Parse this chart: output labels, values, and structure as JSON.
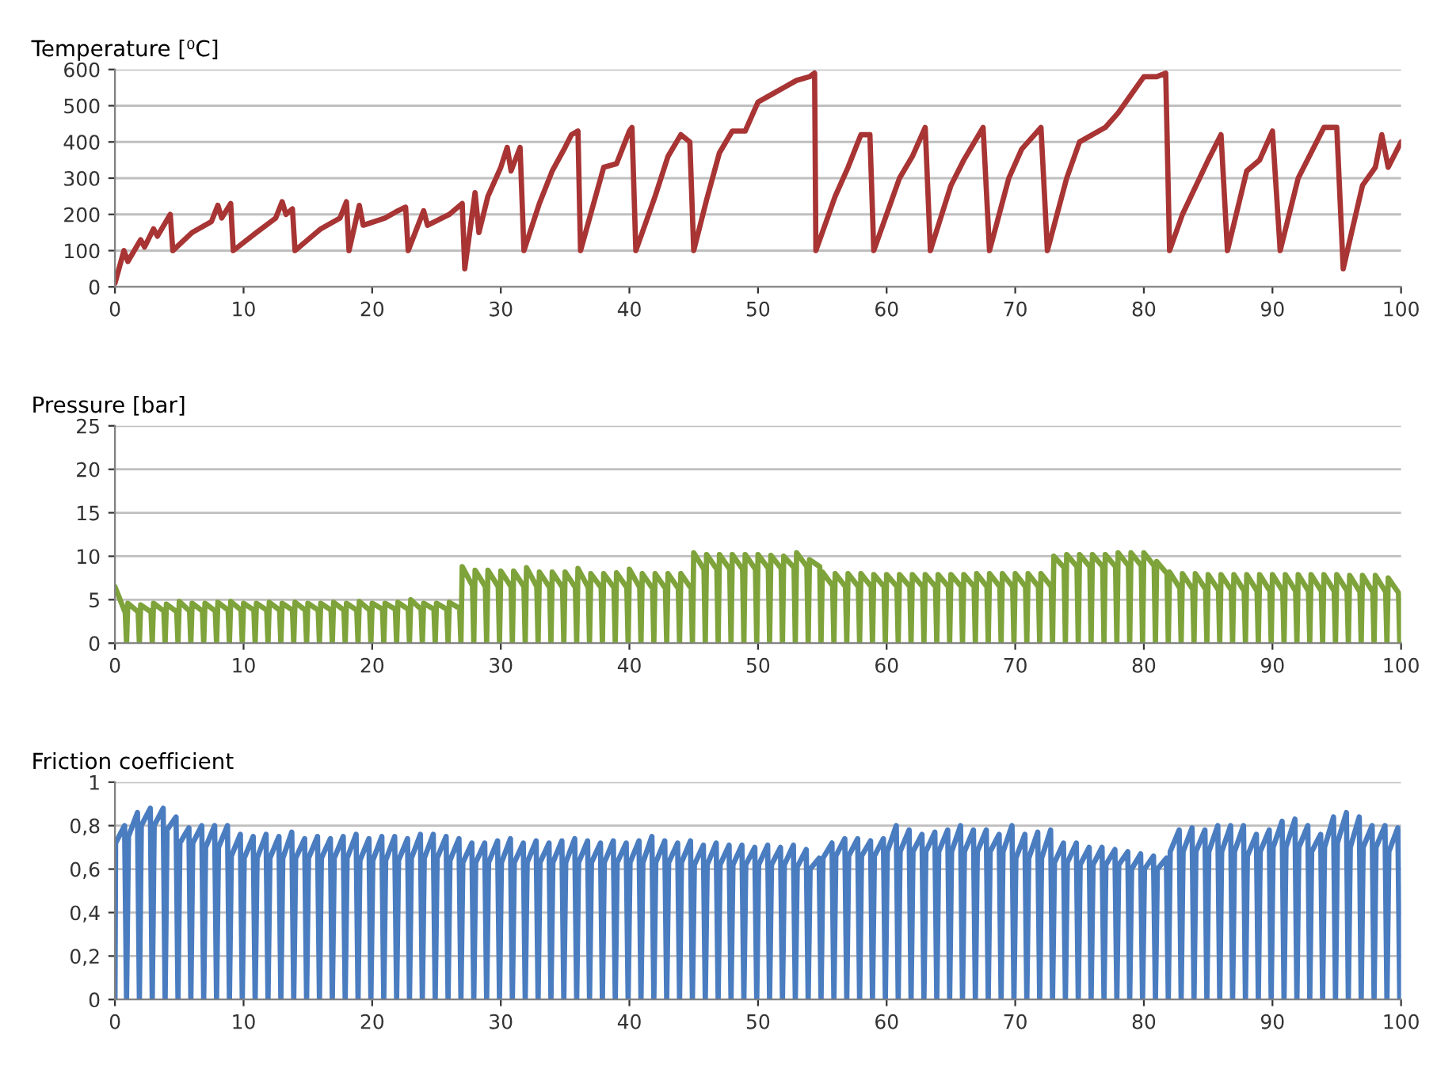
{
  "chart_data": [
    {
      "type": "line",
      "title": "Temperature [⁰C]",
      "xlim": [
        0,
        100
      ],
      "xticks": [
        0,
        10,
        20,
        30,
        40,
        50,
        60,
        70,
        80,
        90,
        100
      ],
      "ylim": [
        0,
        600
      ],
      "yticks": [
        0,
        100,
        200,
        300,
        400,
        500,
        600
      ],
      "grid": "y",
      "series": [
        {
          "color": "#a83434",
          "x": [
            0,
            0.7,
            1,
            2,
            2.3,
            3,
            3.3,
            4.3,
            4.5,
            6,
            7.5,
            8,
            8.3,
            9,
            9.2,
            11,
            12.5,
            13,
            13.3,
            13.8,
            14,
            16,
            17.5,
            18,
            18.2,
            19,
            19.3,
            21,
            22,
            22.6,
            22.8,
            24,
            24.3,
            26,
            27,
            27.2,
            28,
            28.3,
            29,
            30,
            30.5,
            30.8,
            31.5,
            31.8,
            33,
            34,
            35,
            35.5,
            36,
            36.2,
            38,
            39,
            40,
            40.2,
            40.5,
            42,
            43,
            44,
            44.7,
            45,
            46,
            47,
            48,
            49,
            50,
            51,
            52,
            53,
            54,
            54.4,
            54.5,
            56,
            57,
            58,
            58.7,
            59,
            61,
            62,
            63,
            63.4,
            65,
            66,
            67.5,
            68,
            69.5,
            70.5,
            72,
            72.5,
            74,
            75,
            77,
            78,
            79,
            80,
            81,
            81.7,
            82,
            83,
            85,
            86,
            86.5,
            88,
            89,
            90,
            90.6,
            92,
            94,
            95,
            95.5,
            97,
            98,
            98.5,
            99,
            100
          ],
          "values": [
            10,
            100,
            70,
            130,
            110,
            160,
            140,
            200,
            100,
            150,
            180,
            225,
            190,
            230,
            100,
            150,
            190,
            235,
            200,
            215,
            100,
            160,
            190,
            235,
            100,
            225,
            170,
            190,
            210,
            220,
            100,
            210,
            170,
            200,
            230,
            50,
            260,
            150,
            250,
            330,
            385,
            320,
            385,
            100,
            230,
            320,
            385,
            420,
            430,
            100,
            330,
            340,
            430,
            440,
            100,
            250,
            360,
            420,
            400,
            100,
            240,
            370,
            430,
            430,
            510,
            530,
            550,
            570,
            580,
            590,
            100,
            250,
            330,
            420,
            420,
            100,
            300,
            360,
            440,
            100,
            280,
            350,
            440,
            100,
            300,
            380,
            440,
            100,
            300,
            400,
            440,
            480,
            530,
            580,
            580,
            590,
            100,
            200,
            350,
            420,
            100,
            320,
            350,
            430,
            100,
            300,
            440,
            440,
            50,
            280,
            330,
            420,
            330,
            400
          ]
        }
      ]
    },
    {
      "type": "line",
      "title": "Pressure [bar]",
      "xlim": [
        0,
        100
      ],
      "xticks": [
        0,
        10,
        20,
        30,
        40,
        50,
        60,
        70,
        80,
        90,
        100
      ],
      "ylim": [
        0,
        25
      ],
      "yticks": [
        0,
        5,
        10,
        15,
        20,
        25
      ],
      "grid": "y",
      "series": [
        {
          "color": "#7ea33b",
          "x": [
            0,
            0.8,
            0.9,
            1,
            1.8,
            1.9,
            2,
            2.8,
            2.9,
            3,
            3.8,
            3.9,
            4,
            4.8,
            4.9,
            5,
            5.8,
            5.9,
            6,
            6.8,
            6.9,
            7,
            7.8,
            7.9,
            8,
            8.8,
            8.9,
            9,
            9.8,
            9.9,
            10,
            10.8,
            10.9,
            11,
            11.8,
            11.9,
            12,
            12.8,
            12.9,
            13,
            13.8,
            13.9,
            14,
            14.8,
            14.9,
            15,
            15.8,
            15.9,
            16,
            16.8,
            16.9,
            17,
            17.8,
            17.9,
            18,
            18.8,
            18.9,
            19,
            19.8,
            19.9,
            20,
            20.8,
            20.9,
            21,
            21.8,
            21.9,
            22,
            22.8,
            22.9,
            23,
            23.8,
            23.9,
            24,
            24.8,
            24.9,
            25,
            25.8,
            25.9,
            26,
            26.8,
            26.9,
            27,
            27.8,
            27.9,
            28,
            28.8,
            28.9,
            29,
            29.8,
            29.9,
            30,
            30.8,
            30.9,
            31,
            31.8,
            31.9,
            32,
            32.8,
            32.9,
            33,
            33.8,
            33.9,
            34,
            34.8,
            34.9,
            35,
            35.8,
            35.9,
            36,
            36.8,
            36.9,
            37,
            37.8,
            37.9,
            38,
            38.8,
            38.9,
            39,
            39.8,
            39.9,
            40,
            40.8,
            40.9,
            41,
            41.8,
            41.9,
            42,
            42.8,
            42.9,
            43,
            43.8,
            43.9,
            44,
            44.8,
            44.9,
            45,
            45.8,
            45.9,
            46,
            46.8,
            46.9,
            47,
            47.8,
            47.9,
            48,
            48.8,
            48.9,
            49,
            49.8,
            49.9,
            50,
            50.8,
            50.9,
            51,
            51.8,
            51.9,
            52,
            52.8,
            52.9,
            53,
            53.8,
            53.9,
            54,
            54.8,
            54.9,
            55,
            55.8,
            55.9,
            56,
            56.8,
            56.9,
            57,
            57.8,
            57.9,
            58,
            58.8,
            58.9,
            59,
            59.8,
            59.9,
            60,
            60.8,
            60.9,
            61,
            61.8,
            61.9,
            62,
            62.8,
            62.9,
            63,
            63.8,
            63.9,
            64,
            64.8,
            64.9,
            65,
            65.8,
            65.9,
            66,
            66.8,
            66.9,
            67,
            67.8,
            67.9,
            68,
            68.8,
            68.9,
            69,
            69.8,
            69.9,
            70,
            70.8,
            70.9,
            71,
            71.8,
            71.9,
            72,
            72.8,
            72.9,
            73,
            73.8,
            73.9,
            74,
            74.8,
            74.9,
            75,
            75.8,
            75.9,
            76,
            76.8,
            76.9,
            77,
            77.8,
            77.9,
            78,
            78.8,
            78.9,
            79,
            79.8,
            79.9,
            80,
            80.8,
            80.9,
            81,
            81.8,
            81.9,
            82,
            82.8,
            82.9,
            83,
            83.8,
            83.9,
            84,
            84.8,
            84.9,
            85,
            85.8,
            85.9,
            86,
            86.8,
            86.9,
            87,
            87.8,
            87.9,
            88,
            88.8,
            88.9,
            89,
            89.8,
            89.9,
            90,
            90.8,
            90.9,
            91,
            91.8,
            91.9,
            92,
            92.8,
            92.9,
            93,
            93.8,
            93.9,
            94,
            94.8,
            94.9,
            95,
            95.8,
            95.9,
            96,
            96.8,
            96.9,
            97,
            97.8,
            97.9,
            98,
            98.8,
            98.9,
            99,
            99.8,
            99.9
          ],
          "values": [
            6.5,
            3.5,
            0,
            4.6,
            3.6,
            0,
            4.4,
            3.6,
            0,
            4.6,
            3.7,
            0,
            4.5,
            3.6,
            0,
            4.8,
            3.7,
            0,
            4.6,
            3.7,
            0,
            4.6,
            3.7,
            0,
            4.7,
            3.8,
            0,
            4.8,
            3.8,
            0,
            4.6,
            3.8,
            0,
            4.6,
            3.8,
            0,
            4.7,
            3.8,
            0,
            4.6,
            3.8,
            0,
            4.7,
            3.8,
            0,
            4.6,
            3.8,
            0,
            4.6,
            3.8,
            0,
            4.7,
            3.8,
            0,
            4.6,
            3.8,
            0,
            4.8,
            3.8,
            0,
            4.6,
            3.9,
            0,
            4.6,
            3.9,
            0,
            4.7,
            3.9,
            0,
            5.0,
            3.9,
            0,
            4.6,
            3.9,
            0,
            4.6,
            3.9,
            0,
            4.7,
            4.0,
            0,
            8.8,
            6.6,
            0,
            8.4,
            6.5,
            0,
            8.4,
            6.5,
            0,
            8.3,
            6.5,
            0,
            8.3,
            6.5,
            0,
            8.7,
            6.5,
            0,
            8.2,
            6.4,
            0,
            8.2,
            6.4,
            0,
            8.2,
            6.4,
            0,
            8.6,
            6.4,
            0,
            8.0,
            6.4,
            0,
            8.0,
            6.4,
            0,
            8.1,
            6.4,
            0,
            8.5,
            6.4,
            0,
            8.0,
            6.3,
            0,
            8.0,
            6.3,
            0,
            8.0,
            6.3,
            0,
            8.0,
            6.3,
            0,
            10.4,
            8.5,
            0,
            10.2,
            8.5,
            0,
            10.2,
            8.5,
            0,
            10.2,
            8.5,
            0,
            10.2,
            8.5,
            0,
            10.2,
            8.6,
            0,
            10.1,
            8.6,
            0,
            10.0,
            8.7,
            0,
            10.4,
            8.8,
            0,
            9.6,
            8.8,
            0,
            8.2,
            6.6,
            0,
            8.0,
            6.5,
            0,
            8.0,
            6.5,
            0,
            8.0,
            6.5,
            0,
            7.9,
            6.5,
            0,
            7.9,
            6.5,
            0,
            7.9,
            6.5,
            0,
            7.9,
            6.5,
            0,
            7.9,
            6.5,
            0,
            7.9,
            6.5,
            0,
            7.9,
            6.5,
            0,
            7.9,
            6.5,
            0,
            8.0,
            6.5,
            0,
            8.0,
            6.5,
            0,
            8.0,
            6.5,
            0,
            8.0,
            6.5,
            0,
            8.0,
            6.5,
            0,
            8.0,
            6.5,
            0,
            10.0,
            8.7,
            0,
            10.2,
            8.8,
            0,
            10.2,
            8.8,
            0,
            10.2,
            8.8,
            0,
            10.2,
            8.8,
            0,
            10.4,
            8.9,
            0,
            10.4,
            8.9,
            0,
            10.4,
            8.9,
            0,
            9.4,
            8.0,
            0,
            8.2,
            6.3,
            0,
            8.0,
            6.2,
            0,
            8.0,
            6.2,
            0,
            7.9,
            6.1,
            0,
            7.9,
            6.1,
            0,
            7.9,
            6.0,
            0,
            7.9,
            6.0,
            0,
            7.9,
            6.0,
            0,
            7.9,
            6.0,
            0,
            7.9,
            6.0,
            0,
            7.9,
            6.0,
            0,
            7.9,
            6.0,
            0,
            7.9,
            6.0,
            0,
            7.9,
            6.0,
            0,
            7.8,
            5.9,
            0,
            7.8,
            5.9,
            0,
            7.8,
            5.9,
            0,
            7.5,
            5.8,
            0
          ]
        }
      ]
    },
    {
      "type": "line",
      "title": "Friction coefficient",
      "xlim": [
        0,
        100
      ],
      "xticks": [
        0,
        10,
        20,
        30,
        40,
        50,
        60,
        70,
        80,
        90,
        100
      ],
      "ylim": [
        0,
        1
      ],
      "yticks": [
        0,
        {
          "value": 0.2,
          "label": "0,2"
        },
        {
          "value": 0.4,
          "label": "0,4"
        },
        {
          "value": 0.6,
          "label": "0,6"
        },
        {
          "value": 0.8,
          "label": "0,8"
        },
        1
      ],
      "grid": "y",
      "series": [
        {
          "color": "#4a7cc0",
          "x": [
            0,
            0.05,
            0.75,
            0.9,
            1.05,
            1.75,
            1.9,
            2.05,
            2.75,
            2.9,
            3.05,
            3.75,
            3.9,
            4.05,
            4.75,
            4.9,
            5.05,
            5.75,
            5.9,
            6.05,
            6.75,
            6.9,
            7.05,
            7.75,
            7.9,
            8.05,
            8.75,
            8.9,
            9.05,
            9.75,
            9.9,
            10.05,
            10.75,
            10.9,
            11.05,
            11.75,
            11.9,
            12.05,
            12.75,
            12.9,
            13.05,
            13.75,
            13.9,
            14.05,
            14.75,
            14.9,
            15.05,
            15.75,
            15.9,
            16.05,
            16.75,
            16.9,
            17.05,
            17.75,
            17.9,
            18.05,
            18.75,
            18.9,
            19.05,
            19.75,
            19.9,
            20.05,
            20.75,
            20.9,
            21.05,
            21.75,
            21.9,
            22.05,
            22.75,
            22.9,
            23.05,
            23.75,
            23.9,
            24.05,
            24.75,
            24.9,
            25.05,
            25.75,
            25.9,
            26.05,
            26.75,
            26.9,
            27.05,
            27.75,
            27.9,
            28.05,
            28.75,
            28.9,
            29.05,
            29.75,
            29.9,
            30.05,
            30.75,
            30.9,
            31.05,
            31.75,
            31.9,
            32.05,
            32.75,
            32.9,
            33.05,
            33.75,
            33.9,
            34.05,
            34.75,
            34.9,
            35.05,
            35.75,
            35.9,
            36.05,
            36.75,
            36.9,
            37.05,
            37.75,
            37.9,
            38.05,
            38.75,
            38.9,
            39.05,
            39.75,
            39.9,
            40.05,
            40.75,
            40.9,
            41.05,
            41.75,
            41.9,
            42.05,
            42.75,
            42.9,
            43.05,
            43.75,
            43.9,
            44.05,
            44.75,
            44.9,
            45.05,
            45.75,
            45.9,
            46.05,
            46.75,
            46.9,
            47.05,
            47.75,
            47.9,
            48.05,
            48.75,
            48.9,
            49.05,
            49.75,
            49.9,
            50.05,
            50.75,
            50.9,
            51.05,
            51.75,
            51.9,
            52.05,
            52.75,
            52.9,
            53.05,
            53.75,
            53.9,
            54.05,
            54.75,
            54.9,
            55.05,
            55.75,
            55.9,
            56.05,
            56.75,
            56.9,
            57.05,
            57.75,
            57.9,
            58.05,
            58.75,
            58.9,
            59.05,
            59.75,
            59.9,
            60.05,
            60.75,
            60.9,
            61.05,
            61.75,
            61.9,
            62.05,
            62.75,
            62.9,
            63.05,
            63.75,
            63.9,
            64.05,
            64.75,
            64.9,
            65.05,
            65.75,
            65.9,
            66.05,
            66.75,
            66.9,
            67.05,
            67.75,
            67.9,
            68.05,
            68.75,
            68.9,
            69.05,
            69.75,
            69.9,
            70.05,
            70.75,
            70.9,
            71.05,
            71.75,
            71.9,
            72.05,
            72.75,
            72.9,
            73.05,
            73.75,
            73.9,
            74.05,
            74.75,
            74.9,
            75.05,
            75.75,
            75.9,
            76.05,
            76.75,
            76.9,
            77.05,
            77.75,
            77.9,
            78.05,
            78.75,
            78.9,
            79.05,
            79.75,
            79.9,
            80.05,
            80.75,
            80.9,
            81.05,
            81.75,
            81.9,
            82.05,
            82.75,
            82.9,
            83.05,
            83.75,
            83.9,
            84.05,
            84.75,
            84.9,
            85.05,
            85.75,
            85.9,
            86.05,
            86.75,
            86.9,
            87.05,
            87.75,
            87.9,
            88.05,
            88.75,
            88.9,
            89.05,
            89.75,
            89.9,
            90.05,
            90.75,
            90.9,
            91.05,
            91.75,
            91.9,
            92.05,
            92.75,
            92.9,
            93.05,
            93.75,
            93.9,
            94.05,
            94.75,
            94.9,
            95.05,
            95.75,
            95.9,
            96.05,
            96.75,
            96.9,
            97.05,
            97.75,
            97.9,
            98.05,
            98.75,
            98.9,
            99.05,
            99.75,
            99.9
          ],
          "values": [
            0,
            0.72,
            0.8,
            0,
            0.75,
            0.86,
            0,
            0.8,
            0.88,
            0,
            0.8,
            0.88,
            0,
            0.78,
            0.84,
            0,
            0.72,
            0.79,
            0,
            0.72,
            0.8,
            0,
            0.7,
            0.8,
            0,
            0.7,
            0.8,
            0,
            0.66,
            0.76,
            0,
            0.65,
            0.75,
            0,
            0.65,
            0.76,
            0,
            0.65,
            0.75,
            0,
            0.65,
            0.77,
            0,
            0.65,
            0.74,
            0,
            0.65,
            0.75,
            0,
            0.65,
            0.74,
            0,
            0.65,
            0.75,
            0,
            0.65,
            0.76,
            0,
            0.64,
            0.74,
            0,
            0.64,
            0.75,
            0,
            0.64,
            0.75,
            0,
            0.64,
            0.74,
            0,
            0.65,
            0.76,
            0,
            0.65,
            0.76,
            0,
            0.65,
            0.75,
            0,
            0.64,
            0.74,
            0,
            0.63,
            0.72,
            0,
            0.63,
            0.72,
            0,
            0.63,
            0.73,
            0,
            0.63,
            0.74,
            0,
            0.63,
            0.72,
            0,
            0.63,
            0.73,
            0,
            0.63,
            0.72,
            0,
            0.63,
            0.73,
            0,
            0.63,
            0.74,
            0,
            0.63,
            0.73,
            0,
            0.63,
            0.72,
            0,
            0.63,
            0.73,
            0,
            0.63,
            0.72,
            0,
            0.63,
            0.73,
            0,
            0.63,
            0.75,
            0,
            0.63,
            0.73,
            0,
            0.63,
            0.72,
            0,
            0.63,
            0.73,
            0,
            0.62,
            0.71,
            0,
            0.62,
            0.72,
            0,
            0.62,
            0.71,
            0,
            0.62,
            0.71,
            0,
            0.62,
            0.7,
            0,
            0.62,
            0.71,
            0,
            0.62,
            0.7,
            0,
            0.62,
            0.71,
            0,
            0.61,
            0.69,
            0,
            0.6,
            0.65,
            0,
            0.65,
            0.72,
            0,
            0.66,
            0.74,
            0,
            0.66,
            0.74,
            0,
            0.66,
            0.73,
            0,
            0.66,
            0.74,
            0,
            0.68,
            0.8,
            0,
            0.68,
            0.78,
            0,
            0.68,
            0.76,
            0,
            0.68,
            0.77,
            0,
            0.68,
            0.78,
            0,
            0.68,
            0.8,
            0,
            0.68,
            0.78,
            0,
            0.68,
            0.78,
            0,
            0.68,
            0.76,
            0,
            0.68,
            0.8,
            0,
            0.65,
            0.76,
            0,
            0.65,
            0.77,
            0,
            0.65,
            0.78,
            0,
            0.63,
            0.72,
            0,
            0.63,
            0.72,
            0,
            0.62,
            0.7,
            0,
            0.62,
            0.7,
            0,
            0.62,
            0.69,
            0,
            0.62,
            0.68,
            0,
            0.6,
            0.67,
            0,
            0.6,
            0.66,
            0,
            0.6,
            0.65,
            0,
            0.68,
            0.78,
            0,
            0.68,
            0.79,
            0,
            0.68,
            0.78,
            0,
            0.68,
            0.8,
            0,
            0.68,
            0.8,
            0,
            0.68,
            0.8,
            0,
            0.66,
            0.76,
            0,
            0.68,
            0.78,
            0,
            0.7,
            0.82,
            0,
            0.7,
            0.83,
            0,
            0.7,
            0.8,
            0,
            0.68,
            0.76,
            0,
            0.7,
            0.84,
            0,
            0.72,
            0.86,
            0,
            0.7,
            0.84,
            0,
            0.7,
            0.8,
            0,
            0.7,
            0.8,
            0,
            0.68,
            0.79,
            0
          ]
        }
      ]
    }
  ]
}
